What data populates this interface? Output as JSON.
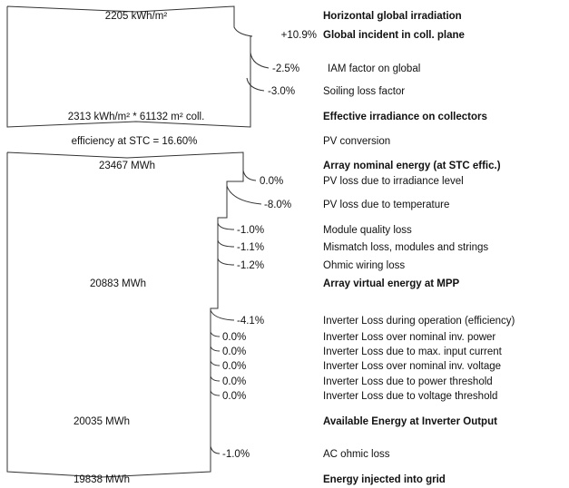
{
  "irradiation": {
    "start": {
      "value": "2205 kWh/m²",
      "label": "Horizontal global irradiation"
    },
    "gain": {
      "value": "+10.9%",
      "label": "Global incident in coll. plane"
    },
    "losses": [
      {
        "value": "-2.5%",
        "label": "IAM factor on global"
      },
      {
        "value": "-3.0%",
        "label": "Soiling loss factor"
      }
    ],
    "effective": {
      "value": "2313 kWh/m² * 61132 m² coll.",
      "label": "Effective irradiance on collectors"
    }
  },
  "conversion": {
    "value": "efficiency at STC = 16.60%",
    "label": "PV conversion"
  },
  "array": {
    "nominal": {
      "value": "23467 MWh",
      "label": "Array nominal energy (at STC effic.)"
    },
    "losses": [
      {
        "value": "0.0%",
        "label": "PV loss due to irradiance level"
      },
      {
        "value": "-8.0%",
        "label": "PV loss due to temperature"
      },
      {
        "value": "-1.0%",
        "label": "Module quality loss"
      },
      {
        "value": "-1.1%",
        "label": "Mismatch loss, modules and strings"
      },
      {
        "value": "-1.2%",
        "label": "Ohmic wiring loss"
      }
    ],
    "virtual": {
      "value": "20883 MWh",
      "label": "Array virtual energy at MPP"
    }
  },
  "inverter": {
    "losses": [
      {
        "value": "-4.1%",
        "label": "Inverter Loss during operation (efficiency)"
      },
      {
        "value": "0.0%",
        "label": "Inverter Loss over nominal inv. power"
      },
      {
        "value": "0.0%",
        "label": "Inverter Loss due to max. input current"
      },
      {
        "value": "0.0%",
        "label": "Inverter Loss over nominal inv. voltage"
      },
      {
        "value": "0.0%",
        "label": "Inverter Loss due to power threshold"
      },
      {
        "value": "0.0%",
        "label": "Inverter Loss due to voltage threshold"
      }
    ],
    "output": {
      "value": "20035 MWh",
      "label": "Available Energy at Inverter Output"
    }
  },
  "grid": {
    "losses": [
      {
        "value": "-1.0%",
        "label": "AC ohmic loss"
      }
    ],
    "injected": {
      "value": "19838 MWh",
      "label": "Energy injected into grid"
    }
  }
}
